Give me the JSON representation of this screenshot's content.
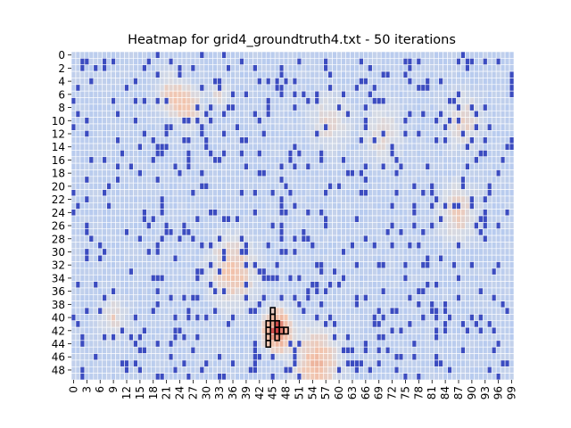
{
  "chart_data": {
    "type": "heatmap",
    "title": "Heatmap for grid4_groundtruth4.txt - 50 iterations",
    "rows": 50,
    "cols": 100,
    "x_tick_labels": [
      "0",
      "3",
      "6",
      "9",
      "12",
      "15",
      "18",
      "21",
      "24",
      "27",
      "30",
      "33",
      "36",
      "39",
      "42",
      "45",
      "48",
      "51",
      "54",
      "57",
      "60",
      "63",
      "66",
      "69",
      "72",
      "75",
      "78",
      "81",
      "84",
      "87",
      "90",
      "93",
      "96",
      "99"
    ],
    "x_tick_step": 3,
    "y_tick_labels": [
      "0",
      "2",
      "4",
      "6",
      "8",
      "10",
      "12",
      "14",
      "16",
      "18",
      "20",
      "22",
      "24",
      "26",
      "28",
      "30",
      "32",
      "34",
      "36",
      "38",
      "40",
      "42",
      "44",
      "46",
      "48"
    ],
    "y_tick_step": 2,
    "colormap": "coolwarm",
    "grid_lines": true,
    "cell_border_color": "#ffffff",
    "palette": {
      "obstacle": "#3b4cc0",
      "low": "#aec6f2",
      "mid": "#d6dbe5",
      "warm": "#f2c6b0",
      "hot": "#e8a088",
      "peak": "#c84040"
    },
    "hot_spots": [
      {
        "row": 6,
        "col": 22,
        "radius": 3,
        "strength": 0.45
      },
      {
        "row": 8,
        "col": 26,
        "radius": 3,
        "strength": 0.45
      },
      {
        "row": 6,
        "col": 33,
        "radius": 2,
        "strength": 0.35
      },
      {
        "row": 10,
        "col": 58,
        "radius": 4,
        "strength": 0.35
      },
      {
        "row": 12,
        "col": 70,
        "radius": 4,
        "strength": 0.35
      },
      {
        "row": 10,
        "col": 88,
        "radius": 4,
        "strength": 0.4
      },
      {
        "row": 24,
        "col": 87,
        "radius": 4,
        "strength": 0.45
      },
      {
        "row": 33,
        "col": 36,
        "radius": 5,
        "strength": 0.55
      },
      {
        "row": 40,
        "col": 9,
        "radius": 3,
        "strength": 0.35
      },
      {
        "row": 47,
        "col": 55,
        "radius": 5,
        "strength": 0.6
      },
      {
        "row": 42,
        "col": 46,
        "radius": 3,
        "strength": 1.0
      }
    ],
    "obstacle_density": 0.12,
    "outlined_path": [
      [
        39,
        45
      ],
      [
        40,
        45
      ],
      [
        41,
        44
      ],
      [
        42,
        44
      ],
      [
        43,
        44
      ],
      [
        44,
        44
      ],
      [
        41,
        46
      ],
      [
        42,
        46
      ],
      [
        42,
        47
      ],
      [
        42,
        48
      ],
      [
        43,
        46
      ]
    ]
  }
}
